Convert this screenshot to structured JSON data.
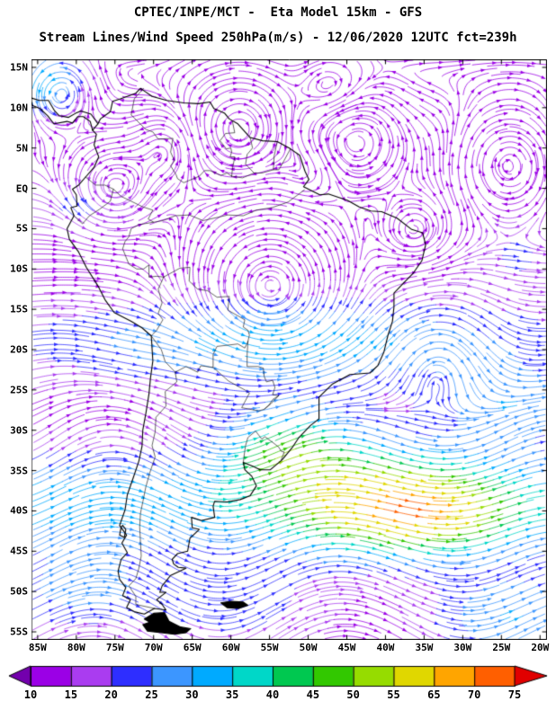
{
  "header": {
    "title_line1": "CPTEC/INPE/MCT -  Eta Model 15km - GFS",
    "title_line2": "Stream Lines/Wind Speed 250hPa(m/s) - 12/06/2020 12UTC fct=239h"
  },
  "map": {
    "lat_ticks": [
      "15N",
      "10N",
      "5N",
      "EQ",
      "5S",
      "10S",
      "15S",
      "20S",
      "25S",
      "30S",
      "35S",
      "40S",
      "45S",
      "50S",
      "55S"
    ],
    "lon_ticks": [
      "85W",
      "80W",
      "75W",
      "70W",
      "65W",
      "60W",
      "55W",
      "50W",
      "45W",
      "40W",
      "35W",
      "30W",
      "25W",
      "20W"
    ]
  },
  "colorbar": {
    "labels": [
      "10",
      "15",
      "20",
      "25",
      "30",
      "35",
      "40",
      "45",
      "50",
      "55",
      "65",
      "70",
      "75"
    ],
    "segment_colors": [
      "#9b00e6",
      "#aa3cf0",
      "#2e2eff",
      "#3c96ff",
      "#00aaff",
      "#00d7c8",
      "#00c850",
      "#32c800",
      "#96dc00",
      "#e0d700",
      "#ffa500",
      "#ff5f00"
    ],
    "arrow_left_color": "#7300ad",
    "arrow_right_color": "#e10000"
  }
}
